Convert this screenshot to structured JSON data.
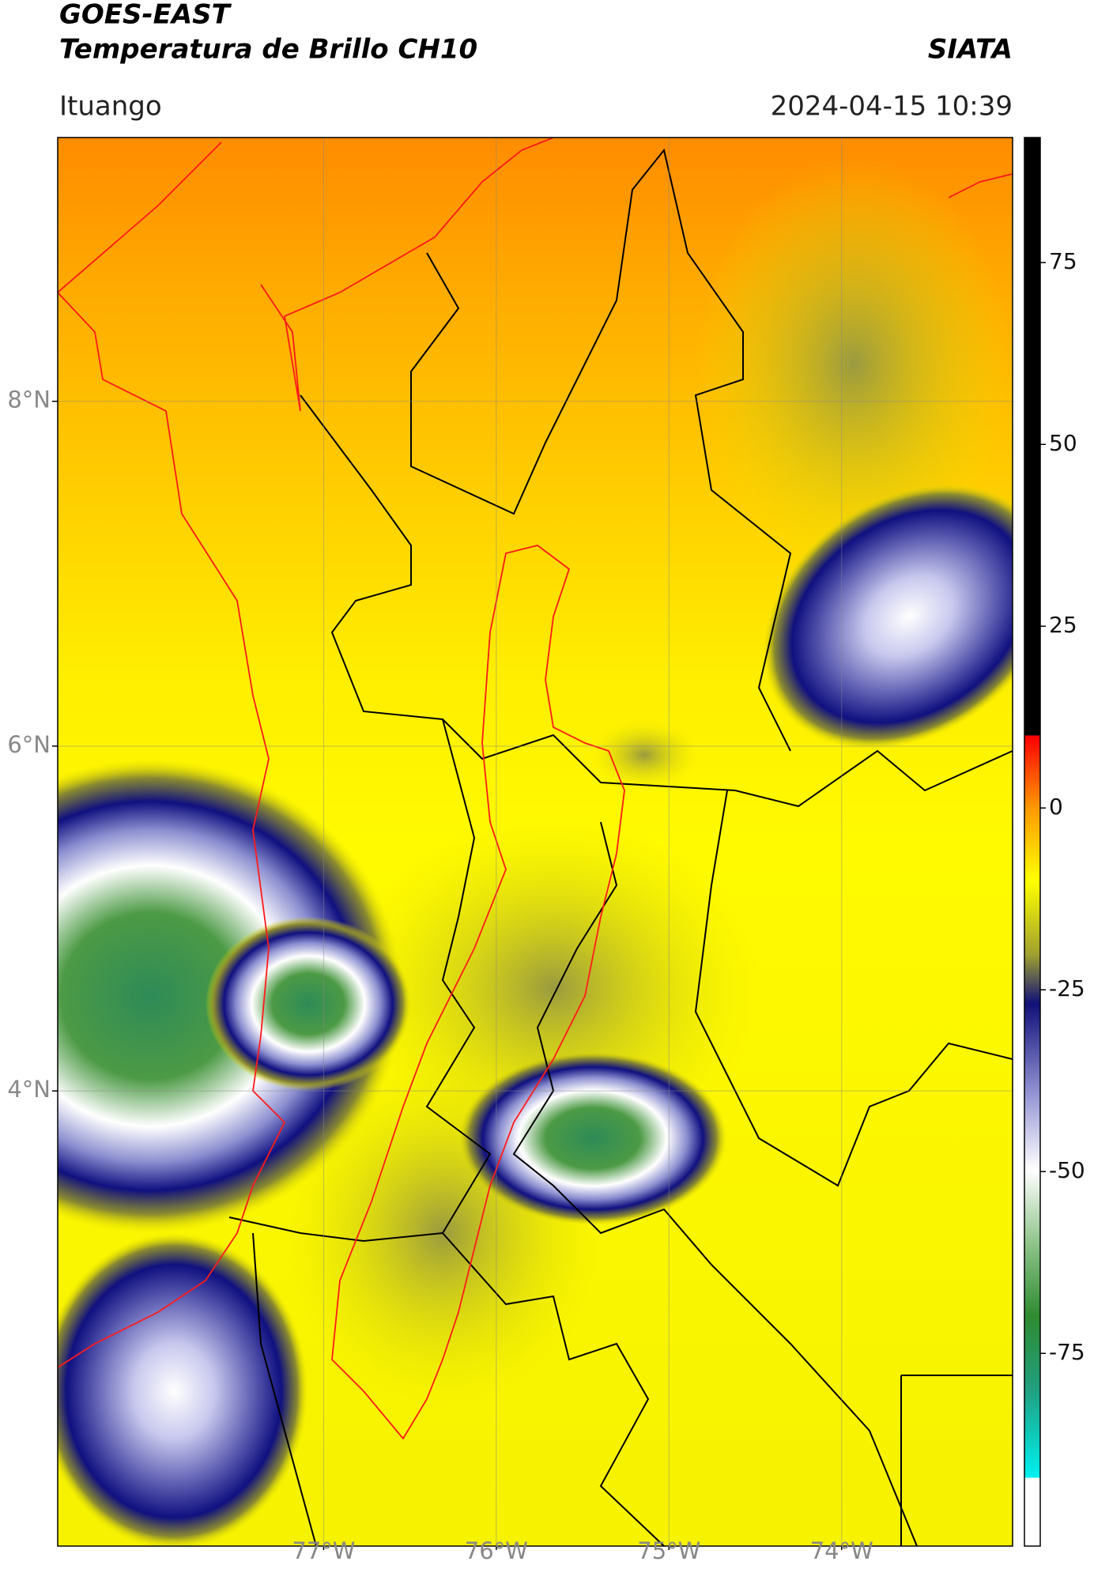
{
  "header": {
    "title": "GOES-EAST",
    "subtitle": "Temperatura de Brillo CH10",
    "source": "SIATA",
    "location": "Ituango",
    "datetime": "2024-04-15 10:39"
  },
  "map": {
    "lon_extent": [
      -78.54,
      -73.01
    ],
    "lat_extent": [
      1.36,
      9.53
    ],
    "lat_ticks": [
      {
        "value": 8,
        "label": "8°N"
      },
      {
        "value": 6,
        "label": "6°N"
      },
      {
        "value": 4,
        "label": "4°N"
      }
    ],
    "lon_ticks": [
      {
        "value": -77,
        "label": "77°W"
      },
      {
        "value": -76,
        "label": "76°W"
      },
      {
        "value": -75,
        "label": "75°W"
      },
      {
        "value": -74,
        "label": "74°W"
      }
    ],
    "grid": true
  },
  "colorbar": {
    "lim": [
      -101.5,
      92.2
    ],
    "ticks": [
      75,
      50,
      25,
      0,
      -25,
      -50,
      -75
    ]
  }
}
